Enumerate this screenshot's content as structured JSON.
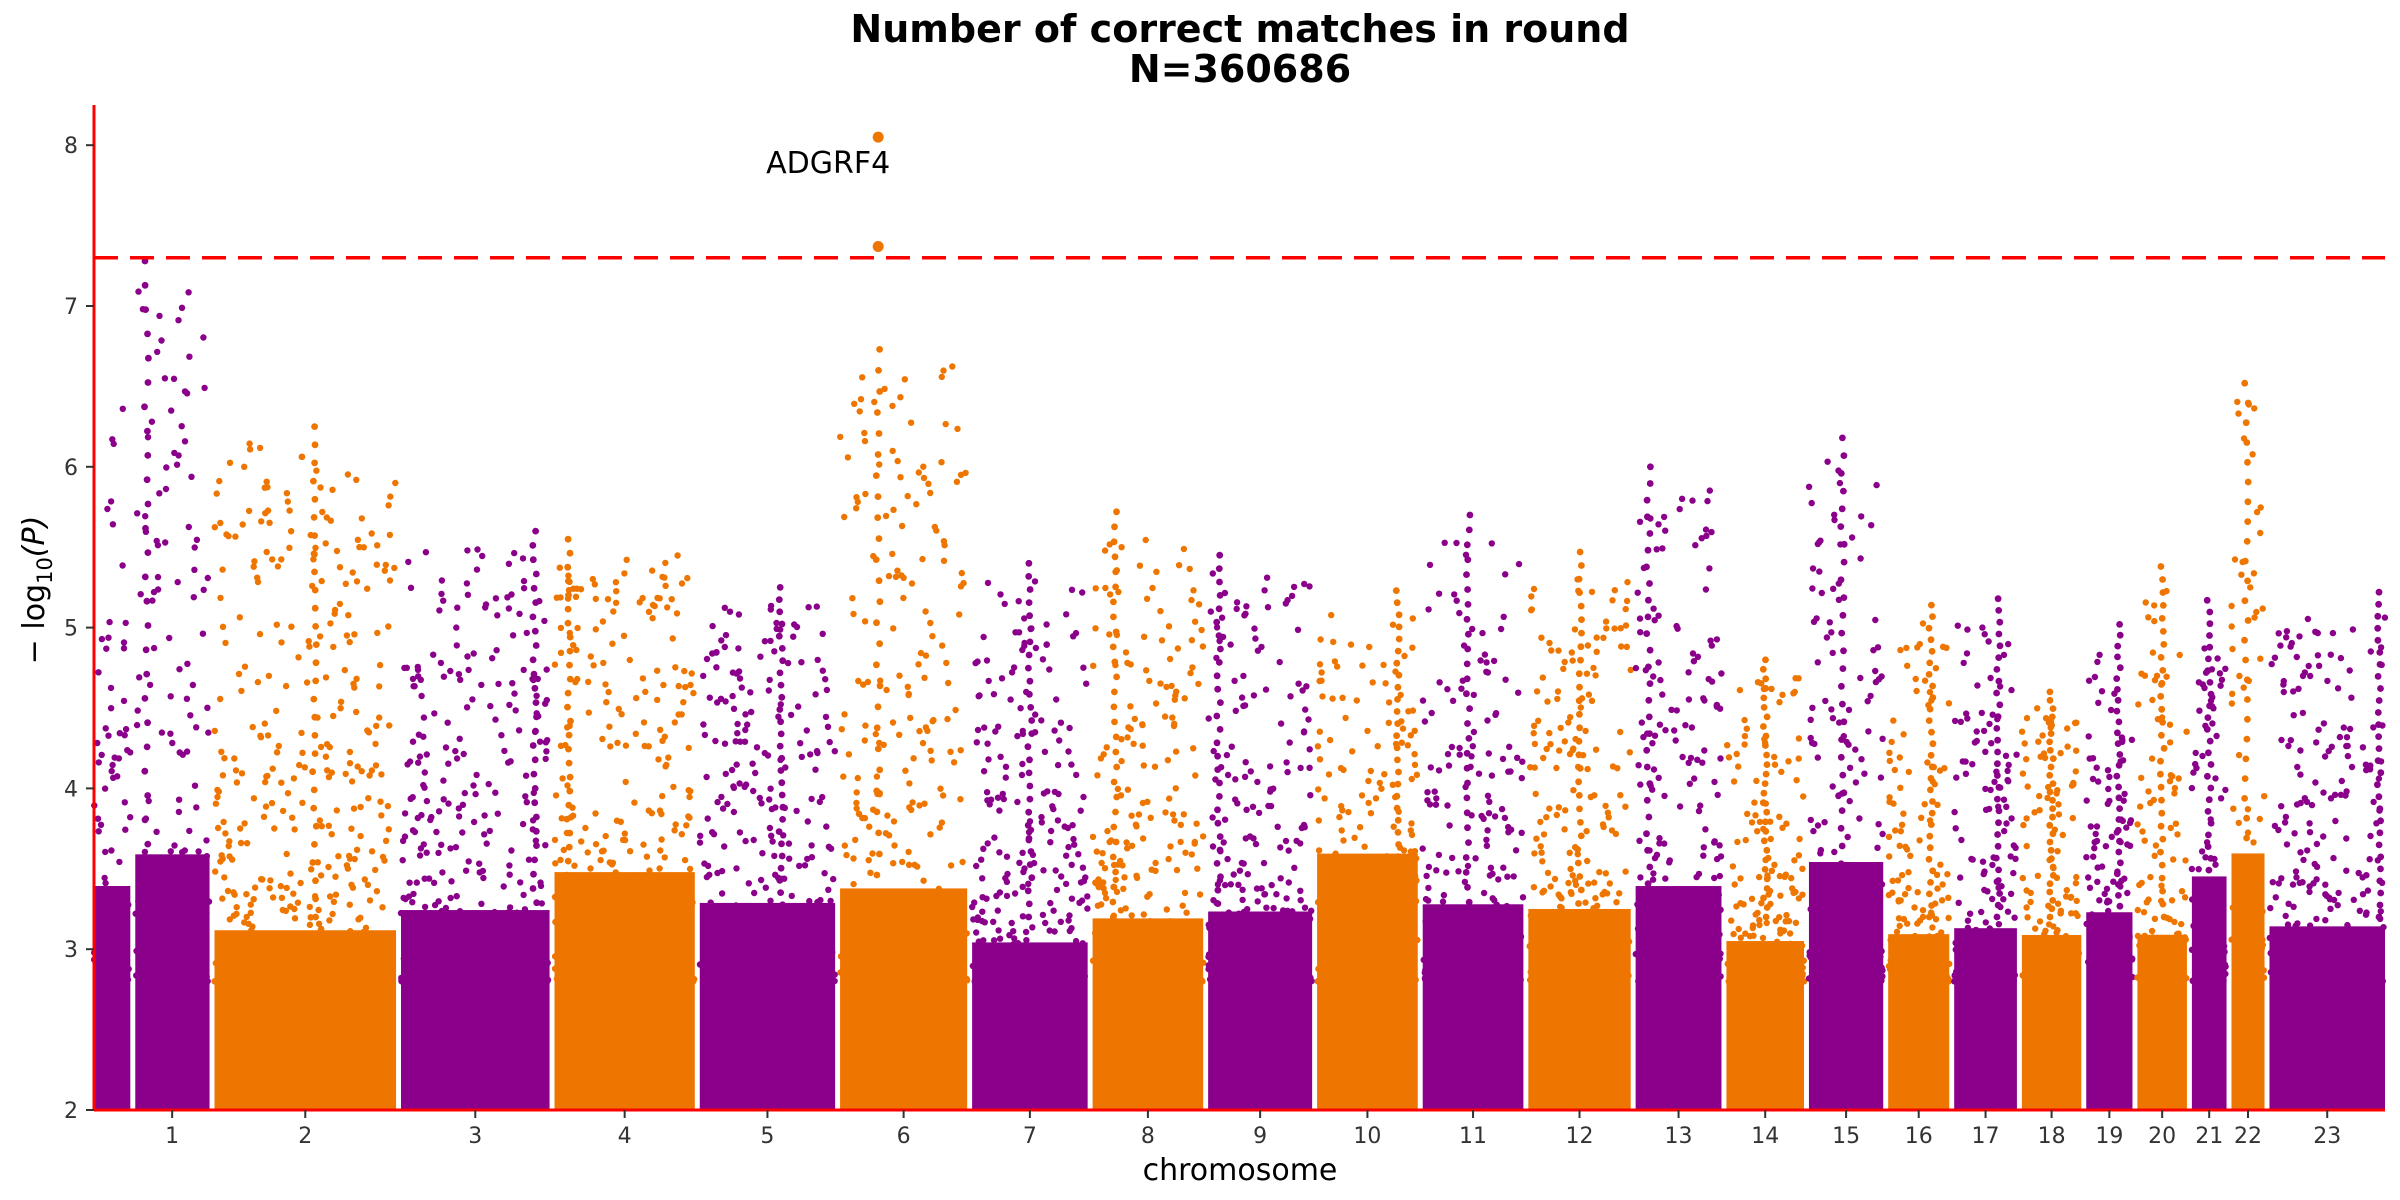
{
  "chart_data": {
    "type": "scatter",
    "subtype": "manhattan",
    "title": "Number of correct matches in round",
    "subtitle": "N=360686",
    "xlabel": "chromosome",
    "ylabel_prefix": "− log",
    "ylabel_sub": "10",
    "ylabel_suffix": "(P)",
    "ylim": [
      2,
      8.25
    ],
    "yticks": [
      2,
      3,
      4,
      5,
      6,
      7,
      8
    ],
    "threshold": 7.3,
    "colors": {
      "odd": "#8B008B",
      "even": "#EE7600",
      "threshold": "#FF0000",
      "axis": "#FF0000"
    },
    "grid": false,
    "legend": "none",
    "chromosomes": [
      {
        "label": "1",
        "width": 22,
        "max": 6.5,
        "peak": null
      },
      {
        "label": "1",
        "width": 45,
        "max": 7.28,
        "peak": 0.15
      },
      {
        "label": "2",
        "width": 110,
        "max": 6.25,
        "peak": 0.55
      },
      {
        "label": "3",
        "width": 90,
        "max": 5.6,
        "peak": 0.9
      },
      {
        "label": "4",
        "width": 85,
        "max": 5.55,
        "peak": 0.1
      },
      {
        "label": "5",
        "width": 82,
        "max": 5.25,
        "peak": 0.6
      },
      {
        "label": "6",
        "width": 77,
        "max": 6.73,
        "peak": 0.3
      },
      {
        "label": "7",
        "width": 70,
        "max": 5.4,
        "peak": 0.5
      },
      {
        "label": "8",
        "width": 67,
        "max": 5.72,
        "peak": 0.2
      },
      {
        "label": "9",
        "width": 63,
        "max": 5.45,
        "peak": 0.1
      },
      {
        "label": "10",
        "width": 61,
        "max": 5.23,
        "peak": 0.8
      },
      {
        "label": "11",
        "width": 61,
        "max": 5.7,
        "peak": 0.45
      },
      {
        "label": "12",
        "width": 62,
        "max": 5.47,
        "peak": 0.5
      },
      {
        "label": "13",
        "width": 52,
        "max": 6.0,
        "peak": 0.15
      },
      {
        "label": "14",
        "width": 47,
        "max": 4.8,
        "peak": 0.5
      },
      {
        "label": "15",
        "width": 45,
        "max": 6.18,
        "peak": 0.45
      },
      {
        "label": "16",
        "width": 37,
        "max": 5.14,
        "peak": 0.7
      },
      {
        "label": "17",
        "width": 38,
        "max": 5.18,
        "peak": 0.7
      },
      {
        "label": "18",
        "width": 36,
        "max": 4.6,
        "peak": 0.5
      },
      {
        "label": "19",
        "width": 28,
        "max": 5.02,
        "peak": 0.7
      },
      {
        "label": "20",
        "width": 30,
        "max": 5.38,
        "peak": 0.5
      },
      {
        "label": "21",
        "width": 21,
        "max": 5.17,
        "peak": 0.5
      },
      {
        "label": "22",
        "width": 20,
        "max": 6.52,
        "peak": 0.45
      },
      {
        "label": "23",
        "width": 70,
        "max": 5.22,
        "peak": 0.95
      }
    ],
    "xticks": [
      "1",
      "2",
      "3",
      "4",
      "5",
      "6",
      "7",
      "8",
      "9",
      "10",
      "11",
      "12",
      "13",
      "14",
      "15",
      "16",
      "17",
      "18",
      "19",
      "20",
      "21",
      "22",
      "23"
    ],
    "highlight_points": [
      {
        "chrom": "6",
        "y": 8.05,
        "label": "ADGRF4"
      },
      {
        "chrom": "6",
        "y": 7.37,
        "label": ""
      }
    ]
  }
}
